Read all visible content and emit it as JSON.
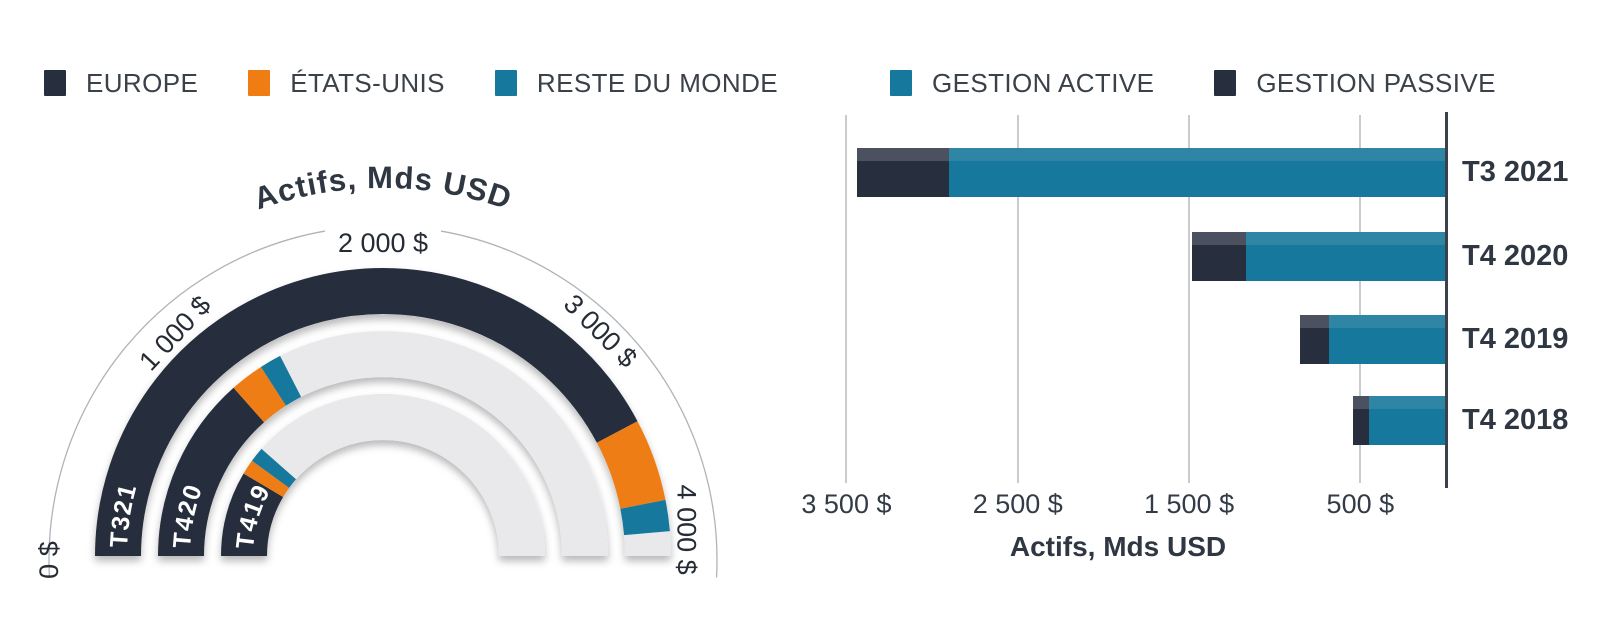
{
  "colors": {
    "europe": "#272e3d",
    "etats_unis": "#ef7d14",
    "reste_du_monde": "#15789c",
    "gestion_active": "#15789c",
    "gestion_passive": "#272e3d",
    "active_top_strip": "#2e86a4",
    "passive_top_strip": "#4b515f",
    "gauge_track": "#e9e9ec",
    "gridline": "#c9cbce",
    "axis_line": "#3a414d",
    "text_dark": "#2f3742",
    "legend_text": "#3a4149",
    "reference_arc": "#b0b3b8",
    "ring_label_text": "#ffffff"
  },
  "legend_geo": {
    "items": [
      {
        "label": "EUROPE",
        "color": "#272e3d"
      },
      {
        "label": "ÉTATS-UNIS",
        "color": "#ef7d14"
      },
      {
        "label": "RESTE DU MONDE",
        "color": "#15789c"
      }
    ]
  },
  "legend_mgmt": {
    "items": [
      {
        "label": "GESTION ACTIVE",
        "color": "#15789c"
      },
      {
        "label": "GESTION PASSIVE",
        "color": "#272e3d"
      }
    ]
  },
  "chart_data": [
    {
      "type": "radial_gauge_stacked",
      "title": "Actifs, Mds USD",
      "axis_min": 0,
      "axis_max": 4000,
      "axis_ticks": [
        {
          "value": 0,
          "label": "0 $"
        },
        {
          "value": 1000,
          "label": "1 000 $"
        },
        {
          "value": 2000,
          "label": "2 000 $"
        },
        {
          "value": 3000,
          "label": "3 000 $"
        },
        {
          "value": 4000,
          "label": "4 000 $"
        }
      ],
      "series_order": [
        "EUROPE",
        "ÉTATS-UNIS",
        "RESTE DU MONDE"
      ],
      "rings": [
        {
          "label": "T321",
          "period": "T3 2021",
          "total": 3890,
          "segments": [
            {
              "name": "EUROPE",
              "value": 3380
            },
            {
              "name": "ÉTATS-UNIS",
              "value": 370
            },
            {
              "name": "RESTE DU MONDE",
              "value": 140
            }
          ]
        },
        {
          "label": "T420",
          "period": "T4 2020",
          "total": 1395,
          "segments": [
            {
              "name": "EUROPE",
              "value": 1075
            },
            {
              "name": "ÉTATS-UNIS",
              "value": 195
            },
            {
              "name": "RESTE DU MONDE",
              "value": 125
            }
          ]
        },
        {
          "label": "T419",
          "period": "T4 2019",
          "total": 920,
          "segments": [
            {
              "name": "EUROPE",
              "value": 680
            },
            {
              "name": "ÉTATS-UNIS",
              "value": 120
            },
            {
              "name": "RESTE DU MONDE",
              "value": 120
            }
          ]
        }
      ]
    },
    {
      "type": "bar",
      "orientation": "horizontal",
      "axis_reversed": true,
      "xlabel": "Actifs, Mds USD",
      "xlim": [
        3830,
        0
      ],
      "grid": "vertical",
      "categories": [
        "T3 2021",
        "T4 2020",
        "T4 2019",
        "T4 2018"
      ],
      "series": [
        {
          "name": "GESTION ACTIVE",
          "color": "#15789c",
          "values": [
            2900,
            1165,
            685,
            450
          ]
        },
        {
          "name": "GESTION PASSIVE",
          "color": "#272e3d",
          "values": [
            540,
            320,
            170,
            90
          ]
        }
      ],
      "totals": [
        3440,
        1485,
        855,
        540
      ],
      "x_ticks": [
        {
          "value": 3500,
          "label": "3 500 $"
        },
        {
          "value": 2500,
          "label": "2 500 $"
        },
        {
          "value": 1500,
          "label": "1 500 $"
        },
        {
          "value": 500,
          "label": "500 $"
        }
      ]
    }
  ]
}
